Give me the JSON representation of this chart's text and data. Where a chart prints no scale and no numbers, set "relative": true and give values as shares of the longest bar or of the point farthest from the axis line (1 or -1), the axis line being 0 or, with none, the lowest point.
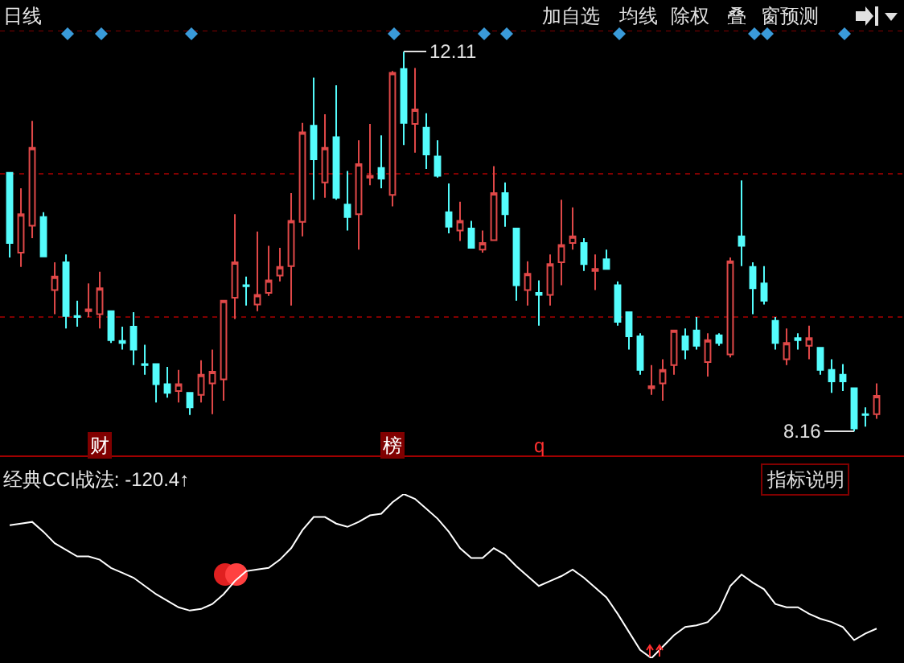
{
  "chart_data": [
    {
      "type": "candlestick",
      "title": "日线",
      "categories": [
        null,
        null,
        null,
        null,
        null,
        null,
        null,
        null,
        null,
        null,
        null,
        null,
        null,
        null,
        null,
        null,
        null,
        null,
        null,
        null,
        null,
        null,
        null,
        null,
        null,
        null,
        null,
        null,
        null,
        null,
        null,
        null,
        null,
        null,
        null,
        null,
        null,
        null,
        null,
        null,
        null,
        null,
        null,
        null,
        null,
        null,
        null,
        null,
        null,
        null,
        null,
        null,
        null,
        null,
        null,
        null,
        null,
        null,
        null,
        null,
        null,
        null,
        null,
        null,
        null,
        null,
        null,
        null,
        null,
        null,
        null,
        null,
        null,
        null,
        null,
        null,
        null,
        null
      ],
      "ohlc": [
        [
          10.85,
          10.85,
          9.97,
          10.12
        ],
        [
          10.02,
          10.69,
          9.87,
          10.42
        ],
        [
          10.3,
          11.39,
          10.17,
          11.11
        ],
        [
          10.39,
          10.44,
          9.98,
          9.98
        ],
        [
          9.63,
          9.92,
          9.38,
          9.77
        ],
        [
          9.92,
          10.0,
          9.23,
          9.36
        ],
        [
          9.36,
          9.52,
          9.25,
          9.35
        ],
        [
          9.41,
          9.7,
          9.35,
          9.43
        ],
        [
          9.38,
          9.82,
          9.23,
          9.65
        ],
        [
          9.41,
          9.41,
          9.08,
          9.11
        ],
        [
          9.1,
          9.25,
          9.01,
          9.08
        ],
        [
          9.25,
          9.4,
          8.85,
          9.01
        ],
        [
          8.86,
          9.06,
          8.75,
          8.85
        ],
        [
          8.86,
          8.86,
          8.46,
          8.65
        ],
        [
          8.65,
          8.83,
          8.51,
          8.56
        ],
        [
          8.58,
          8.8,
          8.46,
          8.65
        ],
        [
          8.56,
          8.56,
          8.33,
          8.41
        ],
        [
          8.54,
          8.9,
          8.46,
          8.75
        ],
        [
          8.66,
          9.01,
          8.34,
          8.78
        ],
        [
          8.7,
          9.52,
          8.48,
          9.52
        ],
        [
          9.55,
          10.42,
          9.33,
          9.92
        ],
        [
          9.68,
          9.77,
          9.47,
          9.67
        ],
        [
          9.48,
          10.24,
          9.41,
          9.58
        ],
        [
          9.6,
          10.09,
          9.57,
          9.73
        ],
        [
          9.78,
          10.07,
          9.72,
          9.87
        ],
        [
          9.88,
          10.64,
          9.47,
          10.35
        ],
        [
          10.34,
          11.37,
          10.19,
          11.27
        ],
        [
          11.34,
          11.84,
          10.57,
          10.99
        ],
        [
          10.75,
          11.46,
          10.59,
          11.11
        ],
        [
          11.22,
          11.76,
          10.57,
          10.59
        ],
        [
          10.52,
          10.87,
          10.25,
          10.39
        ],
        [
          10.42,
          11.19,
          10.05,
          10.94
        ],
        [
          10.8,
          11.36,
          10.72,
          10.82
        ],
        [
          10.9,
          11.24,
          10.69,
          10.79
        ],
        [
          10.62,
          11.91,
          10.5,
          11.89
        ],
        [
          11.93,
          12.11,
          11.14,
          11.37
        ],
        [
          11.36,
          11.94,
          11.06,
          11.51
        ],
        [
          11.32,
          11.47,
          10.89,
          11.04
        ],
        [
          11.02,
          11.19,
          10.8,
          10.82
        ],
        [
          10.44,
          10.74,
          10.22,
          10.29
        ],
        [
          10.25,
          10.55,
          10.14,
          10.35
        ],
        [
          10.27,
          10.35,
          10.07,
          10.07
        ],
        [
          10.05,
          10.25,
          10.02,
          10.12
        ],
        [
          10.15,
          10.92,
          10.15,
          10.64
        ],
        [
          10.64,
          10.75,
          10.29,
          10.42
        ],
        [
          10.27,
          10.27,
          9.52,
          9.68
        ],
        [
          9.63,
          9.93,
          9.47,
          9.8
        ],
        [
          9.6,
          9.73,
          9.26,
          9.58
        ],
        [
          9.58,
          10.0,
          9.47,
          9.9
        ],
        [
          9.92,
          10.57,
          9.68,
          10.1
        ],
        [
          10.12,
          10.49,
          10.05,
          10.19
        ],
        [
          10.12,
          10.17,
          9.83,
          9.9
        ],
        [
          9.83,
          10.0,
          9.63,
          9.85
        ],
        [
          9.95,
          10.05,
          9.85,
          9.85
        ],
        [
          9.68,
          9.72,
          9.26,
          9.3
        ],
        [
          9.4,
          9.4,
          9.01,
          9.15
        ],
        [
          9.15,
          9.18,
          8.75,
          8.8
        ],
        [
          8.61,
          8.85,
          8.54,
          8.63
        ],
        [
          8.66,
          8.91,
          8.48,
          8.8
        ],
        [
          8.85,
          9.21,
          8.75,
          9.21
        ],
        [
          9.15,
          9.23,
          8.91,
          9.01
        ],
        [
          9.21,
          9.35,
          9.01,
          9.05
        ],
        [
          8.88,
          9.18,
          8.73,
          9.11
        ],
        [
          9.16,
          9.18,
          9.05,
          9.08
        ],
        [
          8.96,
          9.97,
          8.93,
          9.93
        ],
        [
          10.19,
          10.77,
          9.88,
          10.09
        ],
        [
          9.87,
          9.92,
          9.38,
          9.65
        ],
        [
          9.7,
          9.88,
          9.48,
          9.52
        ],
        [
          9.31,
          9.35,
          9.01,
          9.08
        ],
        [
          8.91,
          9.23,
          8.85,
          9.08
        ],
        [
          9.13,
          9.18,
          9.01,
          9.11
        ],
        [
          9.05,
          9.26,
          8.91,
          9.13
        ],
        [
          9.03,
          9.03,
          8.75,
          8.8
        ],
        [
          8.8,
          8.91,
          8.56,
          8.68
        ],
        [
          8.75,
          8.86,
          8.58,
          8.68
        ],
        [
          8.61,
          8.61,
          8.16,
          8.19
        ],
        [
          8.34,
          8.41,
          8.21,
          8.33
        ],
        [
          8.34,
          8.66,
          8.29,
          8.53
        ]
      ],
      "ylim": [
        7.91,
        12.33
      ],
      "ref_lines": [
        {
          "axis": "y",
          "value": 12.33,
          "color": "#800000",
          "line_style": "dotted"
        },
        {
          "axis": "y",
          "value": 10.84,
          "color": "#800000",
          "line_style": "dotted"
        },
        {
          "axis": "y",
          "value": 9.35,
          "color": "#800000",
          "line_style": "dotted"
        }
      ],
      "annotations": [
        "12.11",
        "8.16",
        "财",
        "榜",
        "q",
        "加自选",
        "均线",
        "除权",
        "叠",
        "窗",
        "预测"
      ]
    },
    {
      "type": "line",
      "title": "经典CCI战法: -120.4↑",
      "relative": true,
      "color": "#ffffff",
      "categories": [
        null,
        null,
        null,
        null,
        null,
        null,
        null,
        null,
        null,
        null,
        null,
        null,
        null,
        null,
        null,
        null,
        null,
        null,
        null,
        null,
        null,
        null,
        null,
        null,
        null,
        null,
        null,
        null,
        null,
        null,
        null,
        null,
        null,
        null,
        null,
        null,
        null,
        null,
        null,
        null,
        null,
        null,
        null,
        null,
        null,
        null,
        null,
        null,
        null,
        null,
        null,
        null,
        null,
        null,
        null,
        null,
        null,
        null,
        null,
        null,
        null,
        null,
        null,
        null,
        null,
        null,
        null,
        null,
        null,
        null,
        null,
        null,
        null,
        null,
        null,
        null,
        null,
        null
      ],
      "values": [
        0.81,
        0.82,
        0.83,
        0.77,
        0.7,
        0.66,
        0.62,
        0.62,
        0.6,
        0.55,
        0.52,
        0.49,
        0.44,
        0.39,
        0.35,
        0.31,
        0.29,
        0.3,
        0.33,
        0.39,
        0.47,
        0.53,
        0.54,
        0.55,
        0.6,
        0.67,
        0.78,
        0.86,
        0.86,
        0.82,
        0.8,
        0.83,
        0.87,
        0.88,
        0.95,
        1.0,
        0.97,
        0.91,
        0.85,
        0.77,
        0.67,
        0.61,
        0.61,
        0.67,
        0.63,
        0.56,
        0.5,
        0.44,
        0.47,
        0.5,
        0.54,
        0.49,
        0.43,
        0.37,
        0.27,
        0.16,
        0.05,
        0,
        0.07,
        0.14,
        0.19,
        0.2,
        0.22,
        0.29,
        0.44,
        0.51,
        0.46,
        0.42,
        0.33,
        0.31,
        0.31,
        0.27,
        0.24,
        0.22,
        0.19,
        0.11,
        0.15,
        0.18
      ],
      "annotations": [
        "指标说明"
      ]
    }
  ]
}
